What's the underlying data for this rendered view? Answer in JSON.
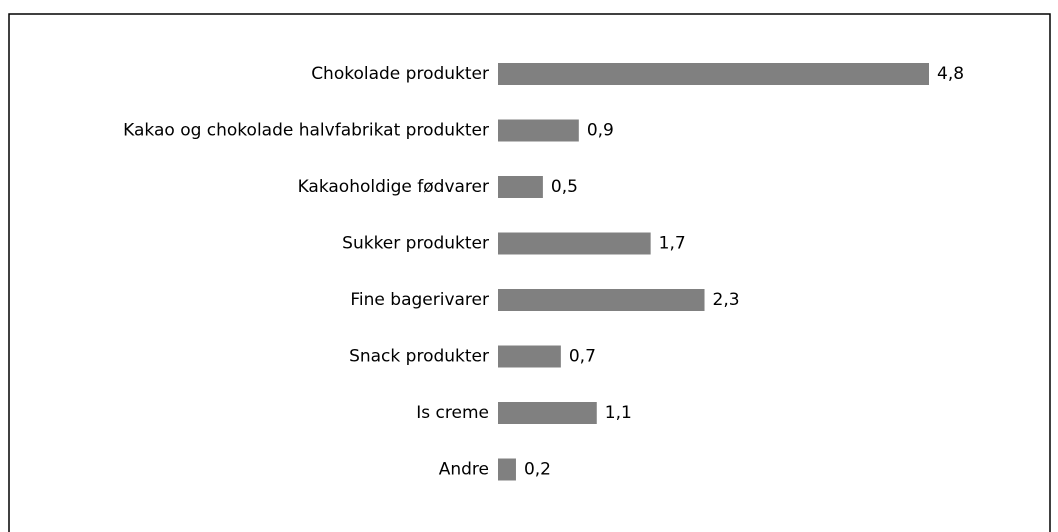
{
  "chart_data": {
    "type": "bar",
    "orientation": "horizontal",
    "categories": [
      "Chokolade produkter",
      "Kakao og chokolade halvfabrikat produkter",
      "Kakaoholdige fødvarer",
      "Sukker produkter",
      "Fine bagerivarer",
      "Snack produkter",
      "Is creme",
      "Andre"
    ],
    "values": [
      4.8,
      0.9,
      0.5,
      1.7,
      2.3,
      0.7,
      1.1,
      0.2
    ],
    "value_labels": [
      "4,8",
      "0,9",
      "0,5",
      "1,7",
      "2,3",
      "0,7",
      "1,1",
      "0,2"
    ],
    "color": "#808080"
  }
}
